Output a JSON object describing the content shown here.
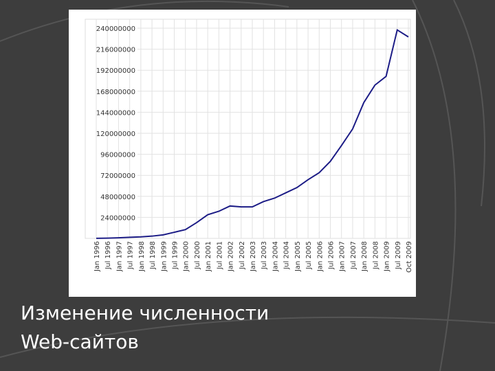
{
  "chart_data": {
    "type": "line",
    "categories": [
      "Jan 1996",
      "Jul 1996",
      "Jan 1997",
      "Jul 1997",
      "Jan 1998",
      "Jul 1998",
      "Jan 1999",
      "Jul 1999",
      "Jan 2000",
      "Jul 2000",
      "Jan 2001",
      "Jul 2001",
      "Jan 2002",
      "Jul 2002",
      "Jan 2003",
      "Jul 2003",
      "Jan 2004",
      "Jul 2004",
      "Jan 2005",
      "Jul 2005",
      "Jan 2006",
      "Jul 2006",
      "Jan 2007",
      "Jul 2007",
      "Jan 2008",
      "Jul 2008",
      "Jan 2009",
      "Jul 2009",
      "Oct 2009"
    ],
    "series": [
      {
        "color": "#1c1c86",
        "values": [
          100000,
          300000,
          700000,
          1300000,
          1800000,
          2600000,
          4000000,
          7000000,
          10000000,
          18000000,
          27000000,
          31000000,
          37000000,
          36000000,
          36000000,
          42000000,
          46000000,
          52000000,
          58000000,
          67000000,
          75000000,
          88000000,
          106000000,
          125000000,
          155000000,
          175000000,
          185000000,
          238000000,
          230000000
        ]
      }
    ],
    "ylim": [
      0,
      240000000
    ],
    "yticks": [
      24000000,
      48000000,
      72000000,
      96000000,
      120000000,
      144000000,
      168000000,
      192000000,
      216000000,
      240000000
    ],
    "grid": true
  },
  "caption": [
    "Изменение численности",
    "Web-сайтов"
  ]
}
